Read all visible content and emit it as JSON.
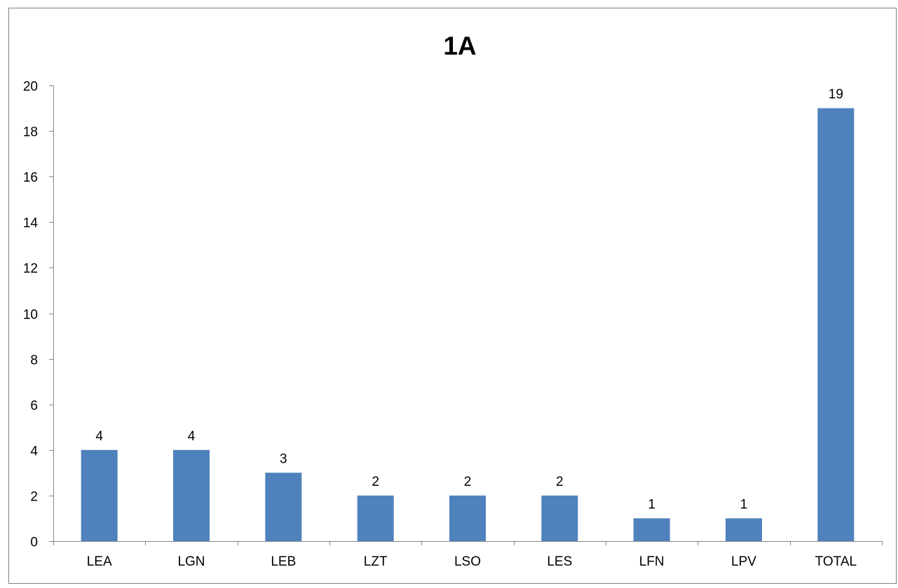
{
  "chart_data": {
    "type": "bar",
    "title": "1A",
    "xlabel": "",
    "ylabel": "",
    "categories": [
      "LEA",
      "LGN",
      "LEB",
      "LZT",
      "LSO",
      "LES",
      "LFN",
      "LPV",
      "TOTAL"
    ],
    "values": [
      4,
      4,
      3,
      2,
      2,
      2,
      1,
      1,
      19
    ],
    "data_labels": [
      "4",
      "4",
      "3",
      "2",
      "2",
      "2",
      "1",
      "1",
      "19"
    ],
    "ylim": [
      0,
      20
    ],
    "yticks": [
      0,
      2,
      4,
      6,
      8,
      10,
      12,
      14,
      16,
      18,
      20
    ],
    "ytick_labels": [
      "0",
      "2",
      "4",
      "6",
      "8",
      "10",
      "12",
      "14",
      "16",
      "18",
      "20"
    ],
    "grid": false,
    "legend": "none",
    "bar_color": "#4F81BD"
  }
}
